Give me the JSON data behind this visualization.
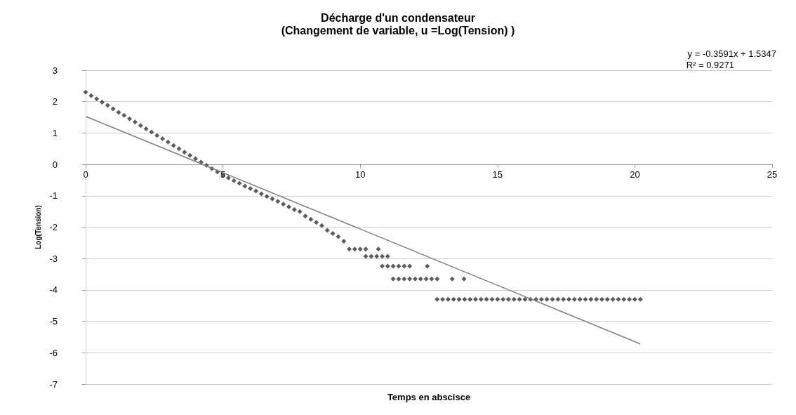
{
  "chart_data": {
    "type": "scatter",
    "title": "Décharge d'un condensateur",
    "subtitle": "(Changement de variable, u =Log(Tension) )",
    "xlabel": "Temps en abscisce",
    "ylabel": "Log(Tension)",
    "annotations": [
      "y = -0.3591x + 1.5347",
      "R² = 0.9271"
    ],
    "xlim": [
      0,
      25
    ],
    "xticks": [
      0,
      5,
      10,
      15,
      20,
      25
    ],
    "ylim": [
      -7,
      3
    ],
    "yticks": [
      -7,
      -6,
      -5,
      -4,
      -3,
      -2,
      -1,
      0,
      1,
      2,
      3
    ],
    "grid": "y",
    "series": [
      {
        "color": "#333333",
        "marker": "diamond",
        "x": [
          0,
          0.2,
          0.4,
          0.6,
          0.8,
          1.0,
          1.2,
          1.4,
          1.6,
          1.8,
          2.0,
          2.2,
          2.4,
          2.6,
          2.8,
          3.0,
          3.2,
          3.4,
          3.6,
          3.8,
          4.0,
          4.2,
          4.4,
          4.6,
          4.8,
          5.0,
          5.2,
          5.4,
          5.6,
          5.8,
          6.0,
          6.2,
          6.4,
          6.6,
          6.8,
          7.0,
          7.2,
          7.4,
          7.6,
          7.8,
          8.0,
          8.2,
          8.4,
          8.6,
          8.8,
          9.0,
          9.2,
          9.4,
          9.6,
          9.8,
          10.0,
          10.2,
          10.66,
          10.2,
          10.4,
          10.6,
          10.8,
          11.0,
          10.8,
          11.0,
          11.2,
          11.4,
          11.6,
          11.8,
          12.44,
          11.2,
          11.4,
          11.6,
          11.8,
          12.0,
          12.2,
          12.4,
          12.6,
          12.8,
          13.35,
          13.78,
          12.8,
          13.0,
          13.2,
          13.4,
          13.6,
          13.8,
          14.0,
          14.2,
          14.4,
          14.6,
          14.8,
          15.0,
          15.2,
          15.4,
          15.6,
          15.8,
          16.0,
          16.2,
          16.4,
          16.6,
          16.8,
          17.0,
          17.2,
          17.4,
          17.6,
          17.8,
          18.0,
          18.2,
          18.4,
          18.6,
          18.8,
          19.0,
          19.2,
          19.4,
          19.6,
          19.8,
          20.0,
          20.2
        ],
        "values": [
          2.3,
          2.19,
          2.09,
          1.98,
          1.88,
          1.77,
          1.66,
          1.56,
          1.45,
          1.35,
          1.24,
          1.13,
          1.03,
          0.92,
          0.82,
          0.71,
          0.6,
          0.5,
          0.39,
          0.29,
          0.18,
          0.07,
          -0.03,
          -0.14,
          -0.24,
          -0.35,
          -0.43,
          -0.52,
          -0.6,
          -0.69,
          -0.77,
          -0.85,
          -0.94,
          -1.02,
          -1.1,
          -1.18,
          -1.27,
          -1.35,
          -1.44,
          -1.5,
          -1.65,
          -1.75,
          -1.85,
          -1.95,
          -2.1,
          -2.2,
          -2.3,
          -2.45,
          -2.7,
          -2.7,
          -2.7,
          -2.7,
          -2.7,
          -2.93,
          -2.93,
          -2.93,
          -2.93,
          -2.93,
          -3.24,
          -3.24,
          -3.24,
          -3.24,
          -3.24,
          -3.24,
          -3.24,
          -3.65,
          -3.65,
          -3.65,
          -3.65,
          -3.65,
          -3.65,
          -3.65,
          -3.65,
          -3.65,
          -3.65,
          -3.65,
          -4.3,
          -4.3,
          -4.3,
          -4.3,
          -4.3,
          -4.3,
          -4.3,
          -4.3,
          -4.3,
          -4.3,
          -4.3,
          -4.3,
          -4.3,
          -4.3,
          -4.3,
          -4.3,
          -4.3,
          -4.3,
          -4.3,
          -4.3,
          -4.3,
          -4.3,
          -4.3,
          -4.3,
          -4.3,
          -4.3,
          -4.3,
          -4.3,
          -4.3,
          -4.3,
          -4.3,
          -4.3,
          -4.3,
          -4.3,
          -4.3,
          -4.3,
          -4.3,
          -4.3
        ]
      },
      {
        "type": "line",
        "color": "#808080",
        "marker": "none",
        "line_style": "solid",
        "x": [
          0,
          20.2
        ],
        "values": [
          1.53,
          -5.72
        ]
      }
    ]
  }
}
